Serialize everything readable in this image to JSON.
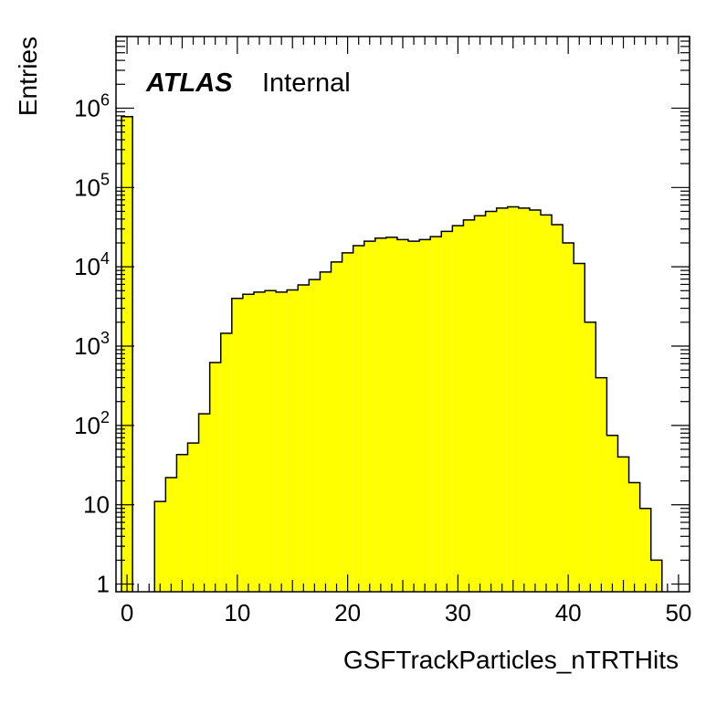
{
  "chart_data": {
    "type": "bar",
    "title": "",
    "atlas_label": "ATLAS",
    "atlas_status": "Internal",
    "xlabel": "GSFTrackParticles_nTRTHits",
    "ylabel": "Entries",
    "xlim": [
      -1,
      51
    ],
    "ylim": [
      0.8,
      8000000
    ],
    "yscale": "log",
    "grid": false,
    "legend": "none",
    "fill_color": "#ffff00",
    "line_color": "#000000",
    "x_ticks": [
      "0",
      "10",
      "20",
      "30",
      "40",
      "50"
    ],
    "y_ticks": [
      {
        "base": "1",
        "exp": ""
      },
      {
        "base": "10",
        "exp": ""
      },
      {
        "base": "10",
        "exp": "2"
      },
      {
        "base": "10",
        "exp": "3"
      },
      {
        "base": "10",
        "exp": "4"
      },
      {
        "base": "10",
        "exp": "5"
      },
      {
        "base": "10",
        "exp": "6"
      }
    ],
    "bin_edges": [
      -0.5,
      0.5,
      1.5,
      2.5,
      3.5,
      4.5,
      5.5,
      6.5,
      7.5,
      8.5,
      9.5,
      10.5,
      11.5,
      12.5,
      13.5,
      14.5,
      15.5,
      16.5,
      17.5,
      18.5,
      19.5,
      20.5,
      21.5,
      22.5,
      23.5,
      24.5,
      25.5,
      26.5,
      27.5,
      28.5,
      29.5,
      30.5,
      31.5,
      32.5,
      33.5,
      34.5,
      35.5,
      36.5,
      37.5,
      38.5,
      39.5,
      40.5,
      41.5,
      42.5,
      43.5,
      44.5,
      45.5,
      46.5,
      47.5,
      48.5,
      49.5
    ],
    "values": [
      780000,
      1,
      1,
      11,
      22,
      43,
      60,
      140,
      620,
      1450,
      4000,
      4500,
      4800,
      5000,
      4800,
      5100,
      5900,
      6900,
      8600,
      11500,
      15000,
      18500,
      21000,
      23000,
      23500,
      22000,
      21000,
      22000,
      24000,
      28000,
      33000,
      39000,
      44000,
      50000,
      55000,
      57000,
      55000,
      52000,
      45000,
      34000,
      20000,
      11000,
      2000,
      400,
      75,
      40,
      19,
      9,
      2,
      1
    ]
  }
}
